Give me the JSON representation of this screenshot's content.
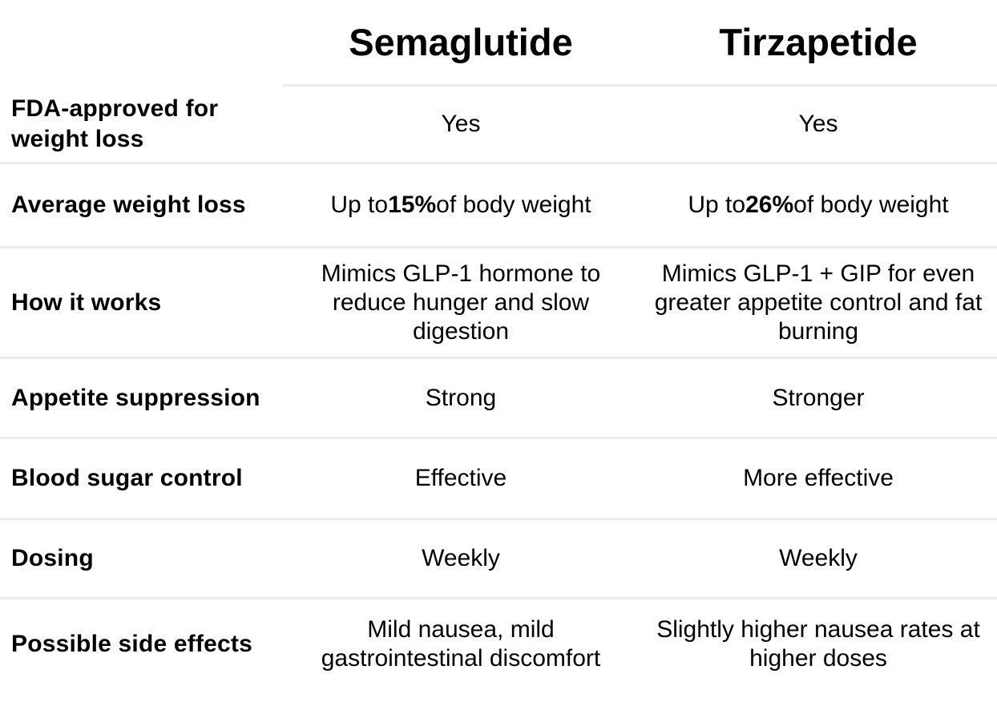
{
  "page": {
    "background_color": "#ffffff",
    "text_color": "#000000",
    "divider_color": "#ececec"
  },
  "table": {
    "header": {
      "drug1": "Semaglutide",
      "drug2": "Tirzapetide"
    },
    "rows": [
      {
        "label": "FDA-approved for\nweight loss",
        "drug1": "Yes",
        "drug2": "Yes"
      },
      {
        "label": "Average weight loss",
        "drug1_parts": [
          "Up to ",
          "15%",
          " of body weight"
        ],
        "drug2_parts": [
          "Up to ",
          "26%",
          " of body weight"
        ]
      },
      {
        "label": "How it works",
        "drug1": "Mimics GLP-1 hormone to\nreduce hunger and slow\ndigestion",
        "drug2": "Mimics GLP-1 + GIP for even\ngreater appetite control and fat\nburning"
      },
      {
        "label": "Appetite suppression",
        "drug1": "Strong",
        "drug2": "Stronger"
      },
      {
        "label": "Blood sugar control",
        "drug1": "Effective",
        "drug2": "More effective"
      },
      {
        "label": "Dosing",
        "drug1": "Weekly",
        "drug2": "Weekly"
      },
      {
        "label": "Possible side effects",
        "drug1": "Mild nausea, mild\ngastrointestinal discomfort",
        "drug2": "Slightly higher nausea rates at\nhigher doses"
      }
    ]
  }
}
